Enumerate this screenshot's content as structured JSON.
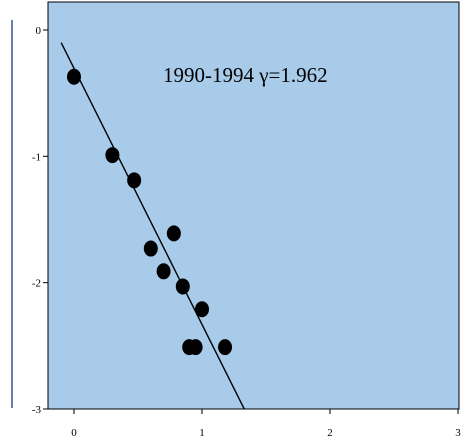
{
  "chart_data": {
    "type": "scatter",
    "title": "",
    "xlabel": "",
    "ylabel": "",
    "annotation": "1990-1994 γ=1.962",
    "xlim": [
      -0.1,
      3.0
    ],
    "ylim": [
      -3.0,
      0.1
    ],
    "x_ticks": [
      0,
      1,
      2,
      3
    ],
    "x_tick_labels": [
      "0",
      "1",
      "2",
      "3"
    ],
    "y_ticks": [
      0,
      -1,
      -2,
      -3
    ],
    "y_tick_labels": [
      "0",
      "-1",
      "-2",
      "-3"
    ],
    "grid": false,
    "series": [
      {
        "points": [
          {
            "x": 0.0,
            "y": -0.37
          },
          {
            "x": 0.3,
            "y": -0.99
          },
          {
            "x": 0.47,
            "y": -1.19
          },
          {
            "x": 0.6,
            "y": -1.73
          },
          {
            "x": 0.7,
            "y": -1.91
          },
          {
            "x": 0.78,
            "y": -1.61
          },
          {
            "x": 0.85,
            "y": -2.03
          },
          {
            "x": 0.9,
            "y": -2.51
          },
          {
            "x": 0.95,
            "y": -2.51
          },
          {
            "x": 1.0,
            "y": -2.21
          },
          {
            "x": 1.18,
            "y": -2.51
          }
        ]
      }
    ],
    "fit_line": {
      "x": [
        -0.1,
        1.33
      ],
      "y": [
        -0.1,
        -3.0
      ]
    },
    "colors": {
      "plot_background": "#a8cbea",
      "left_panel_border": "#34549a",
      "point": "#000000",
      "line": "#000000"
    }
  }
}
